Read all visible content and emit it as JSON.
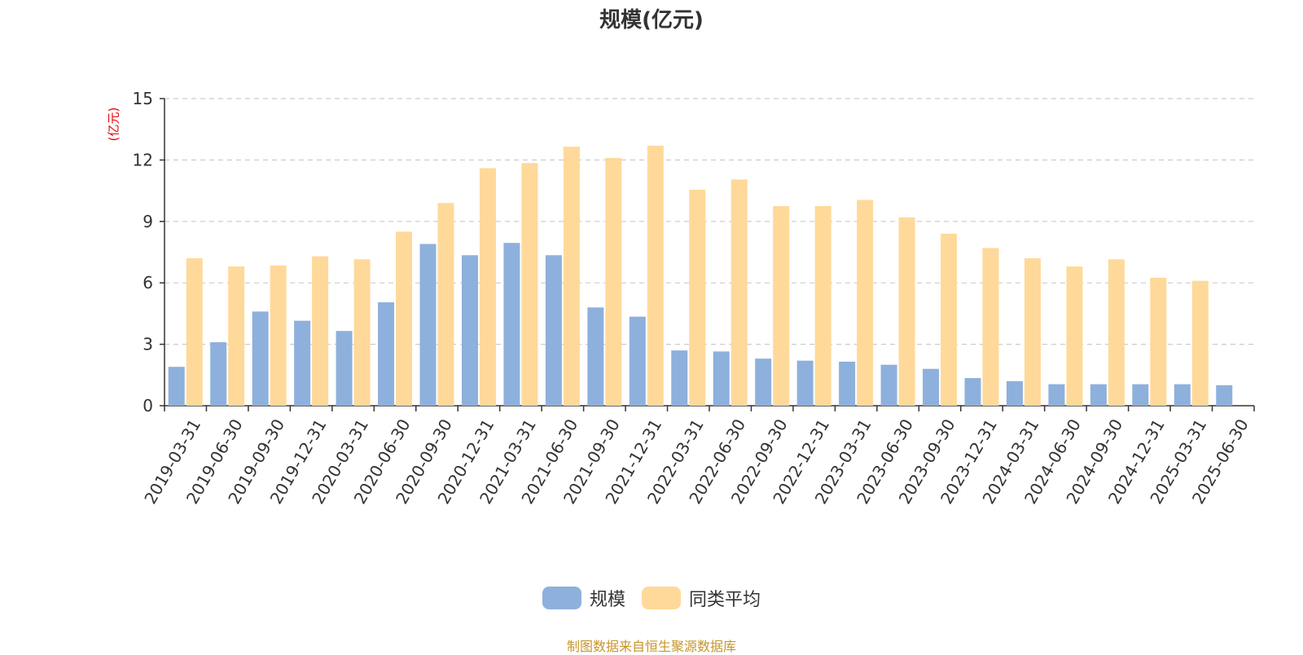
{
  "chart_data": {
    "type": "bar",
    "title": "规模(亿元)",
    "ylabel": "(亿元)",
    "xlabel": "",
    "ylim": [
      0,
      15
    ],
    "yticks": [
      0,
      3,
      6,
      9,
      12,
      15
    ],
    "grid": true,
    "legend_position": "bottom",
    "categories": [
      "2019-03-31",
      "2019-06-30",
      "2019-09-30",
      "2019-12-31",
      "2020-03-31",
      "2020-06-30",
      "2020-09-30",
      "2020-12-31",
      "2021-03-31",
      "2021-06-30",
      "2021-09-30",
      "2021-12-31",
      "2022-03-31",
      "2022-06-30",
      "2022-09-30",
      "2022-12-31",
      "2023-03-31",
      "2023-06-30",
      "2023-09-30",
      "2023-12-31",
      "2024-03-31",
      "2024-06-30",
      "2024-09-30",
      "2024-12-31",
      "2025-03-31",
      "2025-06-30"
    ],
    "series": [
      {
        "name": "规模",
        "color": "#8eb0dc",
        "values": [
          1.9,
          3.1,
          4.6,
          4.15,
          3.65,
          5.05,
          7.9,
          7.35,
          7.95,
          7.35,
          4.8,
          4.35,
          2.7,
          2.65,
          2.3,
          2.2,
          2.15,
          2.0,
          1.8,
          1.35,
          1.2,
          1.05,
          1.05,
          1.05,
          1.05,
          1.0
        ]
      },
      {
        "name": "同类平均",
        "color": "#ffd99a",
        "values": [
          7.2,
          6.8,
          6.85,
          7.3,
          7.15,
          8.5,
          9.9,
          11.6,
          11.85,
          12.65,
          12.1,
          12.7,
          10.55,
          11.05,
          9.75,
          9.75,
          10.05,
          9.2,
          8.4,
          7.7,
          7.2,
          6.8,
          7.15,
          6.25,
          6.1,
          null
        ]
      }
    ]
  },
  "source_note": "制图数据来自恒生聚源数据库"
}
